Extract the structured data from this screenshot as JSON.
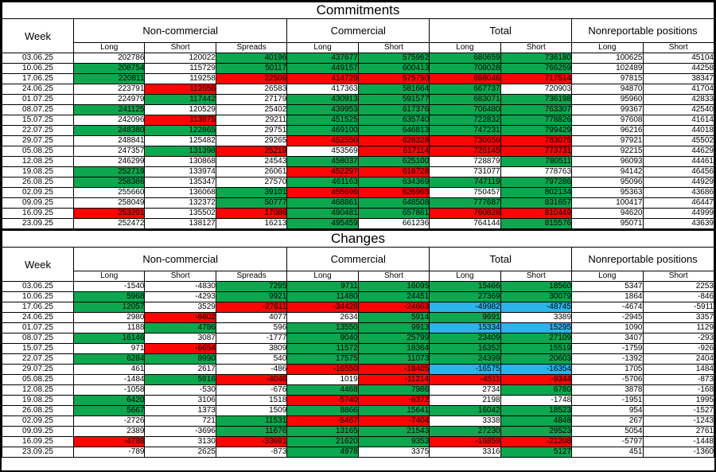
{
  "colors": {
    "green": "#0ca74f",
    "red": "#fb0505",
    "blue": "#2bb4e9",
    "white": "#ffffff"
  },
  "tables": [
    {
      "title": "Commitments",
      "week_header": "Week",
      "groups": [
        {
          "label": "Non-commercial",
          "cols": [
            "Long",
            "Short",
            "Spreads"
          ]
        },
        {
          "label": "Commercial",
          "cols": [
            "Long",
            "Short"
          ]
        },
        {
          "label": "Total",
          "cols": [
            "Long",
            "Short"
          ]
        },
        {
          "label": "Nonreportable positions",
          "cols": [
            "Long",
            "Short"
          ]
        }
      ],
      "rows": [
        {
          "week": "03.06.25",
          "values": [
            "202786",
            "120022",
            "40196",
            "437677",
            "575962",
            "680659",
            "736180",
            "100625",
            "45104"
          ],
          "colors": "wwgggggww",
          "bold": []
        },
        {
          "week": "10.06.25",
          "values": [
            "208754",
            "115729",
            "50117",
            "449157",
            "600413",
            "708028",
            "766259",
            "102489",
            "44258"
          ],
          "colors": "gwgggggww",
          "bold": []
        },
        {
          "week": "17.06.25",
          "values": [
            "220811",
            "119258",
            "22506",
            "414729",
            "575750",
            "658046",
            "717514",
            "97815",
            "38347"
          ],
          "colors": "gwrrrrrww",
          "bold": []
        },
        {
          "week": "24.06.25",
          "values": [
            "223791",
            "112656",
            "26583",
            "417363",
            "581664",
            "667737",
            "720903",
            "94870",
            "41704"
          ],
          "colors": "wrwwggwww",
          "bold": []
        },
        {
          "week": "01.07.25",
          "values": [
            "224979",
            "117442",
            "27179",
            "430913",
            "591577",
            "683071",
            "736198",
            "95960",
            "42833"
          ],
          "colors": "wgwggggww",
          "bold": []
        },
        {
          "week": "08.07.25",
          "values": [
            "241125",
            "120529",
            "25402",
            "439953",
            "617376",
            "706480",
            "763307",
            "99367",
            "42540"
          ],
          "colors": "gwwggggww",
          "bold": []
        },
        {
          "week": "15.07.25",
          "values": [
            "242096",
            "113875",
            "29211",
            "451525",
            "635740",
            "722832",
            "778826",
            "97608",
            "41614"
          ],
          "colors": "wrwggggww",
          "bold": []
        },
        {
          "week": "22.07.25",
          "values": [
            "248380",
            "122865",
            "29751",
            "469100",
            "646813",
            "747231",
            "799429",
            "96216",
            "44018"
          ],
          "colors": "ggwggggww",
          "bold": []
        },
        {
          "week": "29.07.25",
          "values": [
            "248841",
            "125482",
            "29265",
            "452550",
            "628328",
            "730656",
            "783075",
            "97921",
            "45502"
          ],
          "colors": "wwwrrrrww",
          "bold": []
        },
        {
          "week": "05.08.25",
          "values": [
            "247357",
            "131398",
            "25219",
            "453569",
            "617114",
            "726145",
            "773731",
            "92215",
            "44629"
          ],
          "colors": "wgrwrrrww",
          "bold": []
        },
        {
          "week": "12.08.25",
          "values": [
            "246299",
            "130868",
            "24543",
            "458037",
            "625100",
            "728879",
            "780511",
            "96093",
            "44461"
          ],
          "colors": "wwwggwgww",
          "bold": []
        },
        {
          "week": "19.08.25",
          "values": [
            "252719",
            "133974",
            "26061",
            "452297",
            "618728",
            "731077",
            "778763",
            "94142",
            "46456"
          ],
          "colors": "gwwrrwwww",
          "bold": []
        },
        {
          "week": "26.08.25",
          "values": [
            "258386",
            "135347",
            "27570",
            "461163",
            "634369",
            "747119",
            "797286",
            "95096",
            "44929"
          ],
          "colors": "gwwggggww",
          "bold": []
        },
        {
          "week": "02.09.25",
          "values": [
            "255660",
            "136068",
            "39101",
            "455696",
            "626965",
            "750457",
            "802134",
            "95363",
            "43686"
          ],
          "colors": "wwgrrwgww",
          "bold": []
        },
        {
          "week": "09.09.25",
          "values": [
            "258049",
            "132372",
            "50777",
            "468861",
            "648508",
            "777687",
            "831657",
            "100417",
            "46447"
          ],
          "colors": "wwgggggww",
          "bold": []
        },
        {
          "week": "16.09.25",
          "values": [
            "253261",
            "135502",
            "17086",
            "490481",
            "657861",
            "760828",
            "810449",
            "94620",
            "44999"
          ],
          "colors": "rwrggrrww",
          "bold": []
        },
        {
          "week": "23.09.25",
          "values": [
            "252472",
            "138127",
            "16213",
            "495459",
            "661236",
            "764144",
            "815576",
            "95071",
            "43639"
          ],
          "colors": "wwwgwwgww",
          "bold": [
            5,
            6
          ]
        }
      ]
    },
    {
      "title": "Changes",
      "week_header": "Week",
      "groups": [
        {
          "label": "Non-commercial",
          "cols": [
            "Long",
            "Short",
            "Spreads"
          ]
        },
        {
          "label": "Commercial",
          "cols": [
            "Long",
            "Short"
          ]
        },
        {
          "label": "Total",
          "cols": [
            "Long",
            "Short"
          ]
        },
        {
          "label": "Nonreportable positions",
          "cols": [
            "Long",
            "Short"
          ]
        }
      ],
      "rows": [
        {
          "week": "03.06.25",
          "values": [
            "-1540",
            "-4830",
            "7295",
            "9711",
            "16095",
            "15466",
            "18560",
            "5347",
            "2253"
          ],
          "colors": "wwgggggww",
          "bold": []
        },
        {
          "week": "10.06.25",
          "values": [
            "5968",
            "-4293",
            "9921",
            "11480",
            "24451",
            "27369",
            "30079",
            "1864",
            "-846"
          ],
          "colors": "gwgggggww",
          "bold": []
        },
        {
          "week": "17.06.25",
          "values": [
            "12057",
            "3529",
            "-27611",
            "-34428",
            "-24663",
            "-49982",
            "-48745",
            "-4674",
            "-5911"
          ],
          "colors": "gwrrrbbww",
          "bold": []
        },
        {
          "week": "24.06.25",
          "values": [
            "2980",
            "-6602",
            "4077",
            "2634",
            "5914",
            "9691",
            "3389",
            "-2945",
            "3357"
          ],
          "colors": "wrwwggwww",
          "bold": []
        },
        {
          "week": "01.07.25",
          "values": [
            "1188",
            "4786",
            "596",
            "13550",
            "9913",
            "15334",
            "15295",
            "1090",
            "1129"
          ],
          "colors": "wgwggbbww",
          "bold": []
        },
        {
          "week": "08.07.25",
          "values": [
            "16146",
            "3087",
            "-1777",
            "9040",
            "25799",
            "23409",
            "27109",
            "3407",
            "-293"
          ],
          "colors": "gwwggggww",
          "bold": []
        },
        {
          "week": "15.07.25",
          "values": [
            "971",
            "-6654",
            "3809",
            "11572",
            "18364",
            "16352",
            "15519",
            "-1759",
            "-926"
          ],
          "colors": "wrwggggww",
          "bold": []
        },
        {
          "week": "22.07.25",
          "values": [
            "6284",
            "8990",
            "540",
            "17575",
            "11073",
            "24399",
            "20603",
            "-1392",
            "2404"
          ],
          "colors": "ggwggggww",
          "bold": []
        },
        {
          "week": "29.07.25",
          "values": [
            "461",
            "2617",
            "-486",
            "-16550",
            "-18485",
            "-16575",
            "-16354",
            "1705",
            "1484"
          ],
          "colors": "wwwrrbbww",
          "bold": []
        },
        {
          "week": "05.08.25",
          "values": [
            "-1484",
            "5916",
            "-4046",
            "1019",
            "-11214",
            "-4511",
            "-9344",
            "-5706",
            "-873"
          ],
          "colors": "wgrwrrrww",
          "bold": []
        },
        {
          "week": "12.08.25",
          "values": [
            "-1058",
            "-530",
            "-676",
            "4468",
            "7986",
            "2734",
            "6780",
            "3878",
            "-168"
          ],
          "colors": "wwwggwgww",
          "bold": []
        },
        {
          "week": "19.08.25",
          "values": [
            "6420",
            "3106",
            "1518",
            "-5740",
            "-6372",
            "2198",
            "-1748",
            "-1951",
            "1995"
          ],
          "colors": "gwwrrwwww",
          "bold": []
        },
        {
          "week": "26.08.25",
          "values": [
            "5667",
            "1373",
            "1509",
            "8866",
            "15641",
            "16042",
            "18523",
            "954",
            "-1527"
          ],
          "colors": "gwwggggww",
          "bold": []
        },
        {
          "week": "02.09.25",
          "values": [
            "-2726",
            "721",
            "11531",
            "-5467",
            "-7404",
            "3338",
            "4848",
            "267",
            "-1243"
          ],
          "colors": "wwgrrwgww",
          "bold": []
        },
        {
          "week": "09.09.25",
          "values": [
            "2389",
            "-3696",
            "11676",
            "13165",
            "21543",
            "27230",
            "29523",
            "5054",
            "2761"
          ],
          "colors": "wwgggggww",
          "bold": []
        },
        {
          "week": "16.09.25",
          "values": [
            "-4788",
            "3130",
            "-33691",
            "21620",
            "9353",
            "-16859",
            "-21208",
            "-5797",
            "-1448"
          ],
          "colors": "rwrggrrww",
          "bold": []
        },
        {
          "week": "23.09.25",
          "values": [
            "-789",
            "2625",
            "-873",
            "4978",
            "3375",
            "3316",
            "5127",
            "451",
            "-1360"
          ],
          "colors": "wwwgwwgww",
          "bold": [
            5,
            6
          ]
        }
      ]
    }
  ]
}
